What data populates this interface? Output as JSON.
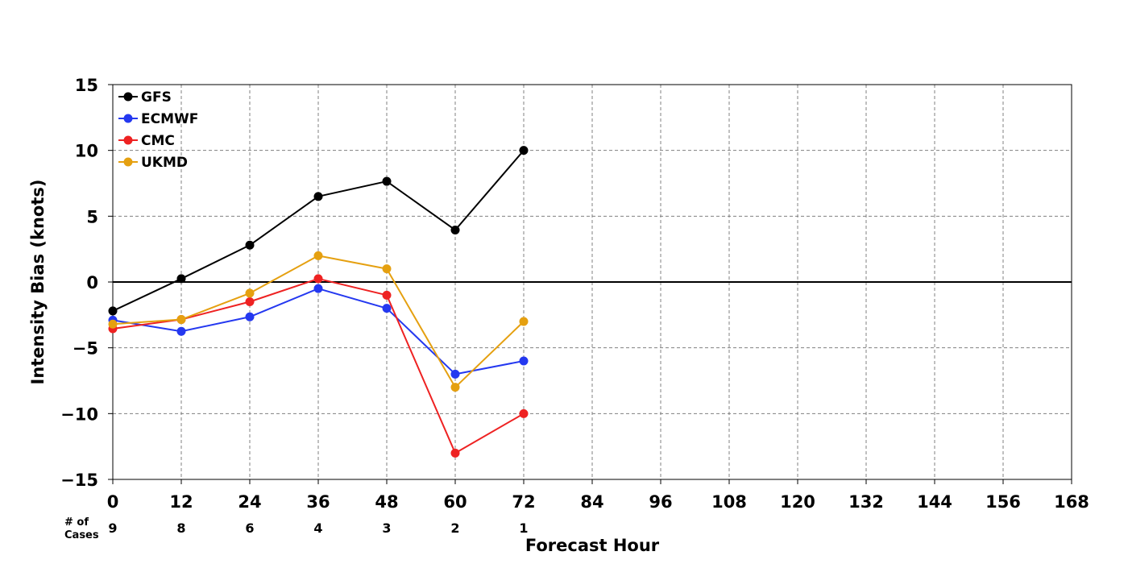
{
  "chart_data": {
    "type": "line",
    "title": "",
    "xlabel": "Forecast Hour",
    "ylabel": "Intensity Bias (knots)",
    "xlim": [
      0,
      168
    ],
    "ylim": [
      -15,
      15
    ],
    "x_ticks": [
      0,
      12,
      24,
      36,
      48,
      60,
      72,
      84,
      96,
      108,
      120,
      132,
      144,
      156,
      168
    ],
    "y_ticks": [
      15,
      10,
      5,
      0,
      -5,
      -10,
      -15
    ],
    "y_tick_labels": [
      "15",
      "10",
      "5",
      "0",
      "−5",
      "−10",
      "−15"
    ],
    "grid": true,
    "legend_position": "top-left",
    "x": [
      0,
      12,
      24,
      36,
      48,
      60,
      72
    ],
    "series": [
      {
        "name": "GFS",
        "color": "#000000",
        "values": [
          -2.2,
          0.25,
          2.8,
          6.5,
          7.65,
          3.95,
          10.0
        ]
      },
      {
        "name": "ECMWF",
        "color": "#2438f0",
        "values": [
          -2.9,
          -3.75,
          -2.65,
          -0.5,
          -2.0,
          -7.0,
          -6.0
        ]
      },
      {
        "name": "CMC",
        "color": "#ee2222",
        "values": [
          -3.55,
          -2.85,
          -1.5,
          0.25,
          -1.0,
          -13.0,
          -10.0
        ]
      },
      {
        "name": "UKMD",
        "color": "#e5a010",
        "values": [
          -3.2,
          -2.85,
          -0.85,
          2.0,
          1.0,
          -8.0,
          -3.0
        ]
      }
    ],
    "cases": {
      "label_line1": "# of",
      "label_line2": "Cases",
      "x": [
        0,
        12,
        24,
        36,
        48,
        60,
        72
      ],
      "values": [
        "9",
        "8",
        "6",
        "4",
        "3",
        "2",
        "1"
      ]
    }
  }
}
